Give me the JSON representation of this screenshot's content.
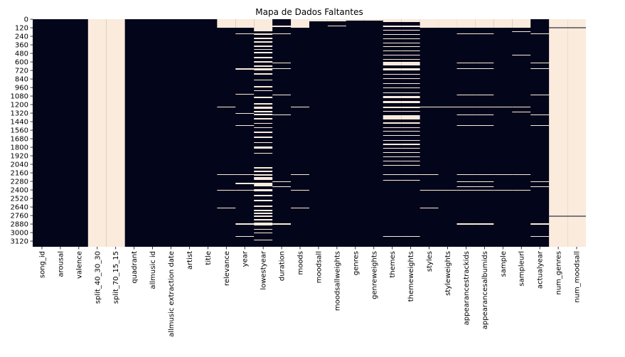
{
  "chart_data": {
    "type": "heatmap",
    "title": "Mapa de Dados Faltantes",
    "xlabel": "",
    "ylabel": "",
    "colors": {
      "present": "#03051a",
      "missing": "#faebdd"
    },
    "n_rows": 3200,
    "y_ticks": [
      0,
      120,
      240,
      360,
      480,
      600,
      720,
      840,
      960,
      1080,
      1200,
      1320,
      1440,
      1560,
      1680,
      1800,
      1920,
      2040,
      2160,
      2280,
      2400,
      2520,
      2640,
      2760,
      2880,
      3000,
      3120
    ],
    "columns": [
      "song_id",
      "arousal",
      "valence",
      "split_40_30_30",
      "split_70_15_15",
      "quadrant",
      "allmusic id",
      "allmusic extraction date",
      "artist",
      "title",
      "relevance",
      "year",
      "lowestyear",
      "duration",
      "moods",
      "moodsall",
      "moodsallweights",
      "genres",
      "genreweights",
      "themes",
      "themeweights",
      "styles",
      "styleweights",
      "appearancestrackids",
      "appearancesalbumids",
      "sample",
      "sampleurl",
      "actualyear",
      "num_genres",
      "num_moodsall"
    ],
    "missing": {
      "song_id": [],
      "arousal": [],
      "valence": [],
      "split_40_30_30": [
        [
          0,
          3200
        ]
      ],
      "split_70_15_15": [
        [
          0,
          3200
        ]
      ],
      "quadrant": [],
      "allmusic id": [],
      "allmusic extraction date": [],
      "artist": [],
      "title": [],
      "relevance": [
        [
          0,
          120
        ],
        [
          1230,
          1240
        ],
        [
          2180,
          2190
        ],
        [
          2400,
          2410
        ],
        [
          2650,
          2660
        ]
      ],
      "year": [
        [
          0,
          120
        ],
        [
          200,
          210
        ],
        [
          690,
          710
        ],
        [
          1050,
          1060
        ],
        [
          1320,
          1330
        ],
        [
          1490,
          1500
        ],
        [
          2180,
          2190
        ],
        [
          2300,
          2320
        ],
        [
          2400,
          2410
        ],
        [
          2870,
          2890
        ],
        [
          3050,
          3060
        ]
      ],
      "lowestyear": [
        [
          0,
          170
        ],
        [
          200,
          220
        ],
        [
          260,
          280
        ],
        [
          310,
          330
        ],
        [
          370,
          390
        ],
        [
          420,
          430
        ],
        [
          460,
          480
        ],
        [
          530,
          550
        ],
        [
          590,
          610
        ],
        [
          650,
          670
        ],
        [
          690,
          720
        ],
        [
          760,
          780
        ],
        [
          850,
          860
        ],
        [
          940,
          960
        ],
        [
          1000,
          1010
        ],
        [
          1090,
          1110
        ],
        [
          1180,
          1200
        ],
        [
          1230,
          1260
        ],
        [
          1290,
          1310
        ],
        [
          1330,
          1350
        ],
        [
          1390,
          1410
        ],
        [
          1460,
          1470
        ],
        [
          1520,
          1530
        ],
        [
          1580,
          1600
        ],
        [
          1650,
          1670
        ],
        [
          1730,
          1740
        ],
        [
          1790,
          1820
        ],
        [
          1880,
          1890
        ],
        [
          2080,
          2100
        ],
        [
          2130,
          2150
        ],
        [
          2180,
          2200
        ],
        [
          2220,
          2260
        ],
        [
          2300,
          2350
        ],
        [
          2390,
          2420
        ],
        [
          2470,
          2490
        ],
        [
          2540,
          2560
        ],
        [
          2620,
          2640
        ],
        [
          2680,
          2700
        ],
        [
          2720,
          2740
        ],
        [
          2760,
          2780
        ],
        [
          2810,
          2830
        ],
        [
          2860,
          2900
        ],
        [
          2950,
          2960
        ],
        [
          3000,
          3010
        ],
        [
          3100,
          3110
        ]
      ],
      "duration": [
        [
          90,
          110
        ],
        [
          200,
          210
        ],
        [
          610,
          620
        ],
        [
          690,
          700
        ],
        [
          1060,
          1070
        ],
        [
          1340,
          1350
        ],
        [
          2280,
          2290
        ],
        [
          2350,
          2360
        ],
        [
          2870,
          2890
        ]
      ],
      "moods": [
        [
          0,
          120
        ],
        [
          1230,
          1240
        ],
        [
          2180,
          2190
        ],
        [
          2400,
          2410
        ],
        [
          2650,
          2660
        ]
      ],
      "moodsall": [
        [
          0,
          30
        ]
      ],
      "moodsallweights": [
        [
          0,
          30
        ],
        [
          90,
          100
        ]
      ],
      "genres": [
        [
          0,
          20
        ]
      ],
      "genreweights": [
        [
          0,
          20
        ]
      ],
      "themes": [
        [
          0,
          40
        ],
        [
          90,
          110
        ],
        [
          150,
          160
        ],
        [
          210,
          220
        ],
        [
          270,
          280
        ],
        [
          330,
          340
        ],
        [
          380,
          390
        ],
        [
          440,
          450
        ],
        [
          500,
          510
        ],
        [
          560,
          570
        ],
        [
          600,
          650
        ],
        [
          690,
          720
        ],
        [
          770,
          780
        ],
        [
          830,
          840
        ],
        [
          900,
          910
        ],
        [
          960,
          970
        ],
        [
          1030,
          1040
        ],
        [
          1080,
          1110
        ],
        [
          1150,
          1180
        ],
        [
          1230,
          1250
        ],
        [
          1290,
          1300
        ],
        [
          1350,
          1410
        ],
        [
          1450,
          1470
        ],
        [
          1520,
          1530
        ],
        [
          1570,
          1580
        ],
        [
          1630,
          1640
        ],
        [
          1700,
          1710
        ],
        [
          1750,
          1770
        ],
        [
          1810,
          1820
        ],
        [
          1870,
          1880
        ],
        [
          1930,
          1940
        ],
        [
          1990,
          2000
        ],
        [
          2050,
          2060
        ],
        [
          2180,
          2190
        ],
        [
          2260,
          2270
        ],
        [
          3050,
          3060
        ]
      ],
      "themeweights": [
        [
          0,
          40
        ],
        [
          90,
          110
        ],
        [
          150,
          160
        ],
        [
          210,
          220
        ],
        [
          270,
          280
        ],
        [
          330,
          340
        ],
        [
          380,
          390
        ],
        [
          440,
          450
        ],
        [
          500,
          510
        ],
        [
          560,
          570
        ],
        [
          600,
          650
        ],
        [
          690,
          720
        ],
        [
          770,
          780
        ],
        [
          830,
          840
        ],
        [
          900,
          910
        ],
        [
          960,
          970
        ],
        [
          1030,
          1040
        ],
        [
          1080,
          1110
        ],
        [
          1150,
          1180
        ],
        [
          1230,
          1250
        ],
        [
          1290,
          1300
        ],
        [
          1350,
          1410
        ],
        [
          1450,
          1470
        ],
        [
          1520,
          1530
        ],
        [
          1570,
          1580
        ],
        [
          1630,
          1640
        ],
        [
          1700,
          1710
        ],
        [
          1750,
          1770
        ],
        [
          1810,
          1820
        ],
        [
          1870,
          1880
        ],
        [
          1930,
          1940
        ],
        [
          1990,
          2000
        ],
        [
          2050,
          2060
        ],
        [
          2180,
          2190
        ],
        [
          2260,
          2270
        ],
        [
          3050,
          3060
        ]
      ],
      "styles": [
        [
          0,
          120
        ],
        [
          1230,
          1240
        ],
        [
          2180,
          2190
        ],
        [
          2400,
          2410
        ],
        [
          2650,
          2660
        ]
      ],
      "styleweights": [
        [
          0,
          120
        ],
        [
          1230,
          1240
        ],
        [
          2400,
          2410
        ]
      ],
      "appearancestrackids": [
        [
          0,
          120
        ],
        [
          200,
          210
        ],
        [
          610,
          620
        ],
        [
          690,
          700
        ],
        [
          1060,
          1070
        ],
        [
          1230,
          1240
        ],
        [
          1340,
          1350
        ],
        [
          1490,
          1500
        ],
        [
          2180,
          2190
        ],
        [
          2280,
          2290
        ],
        [
          2350,
          2360
        ],
        [
          2400,
          2410
        ],
        [
          2870,
          2890
        ]
      ],
      "appearancesalbumids": [
        [
          0,
          120
        ],
        [
          200,
          210
        ],
        [
          610,
          620
        ],
        [
          690,
          700
        ],
        [
          1060,
          1070
        ],
        [
          1230,
          1240
        ],
        [
          1340,
          1350
        ],
        [
          1490,
          1500
        ],
        [
          2180,
          2190
        ],
        [
          2280,
          2290
        ],
        [
          2350,
          2360
        ],
        [
          2400,
          2410
        ],
        [
          2870,
          2890
        ]
      ],
      "sample": [
        [
          0,
          120
        ],
        [
          1230,
          1240
        ],
        [
          2180,
          2190
        ],
        [
          2400,
          2410
        ]
      ],
      "sampleurl": [
        [
          0,
          120
        ],
        [
          170,
          180
        ],
        [
          500,
          510
        ],
        [
          1230,
          1240
        ],
        [
          1300,
          1310
        ],
        [
          2180,
          2190
        ],
        [
          2400,
          2410
        ]
      ],
      "actualyear": [
        [
          200,
          210
        ],
        [
          610,
          620
        ],
        [
          690,
          700
        ],
        [
          1060,
          1070
        ],
        [
          1340,
          1350
        ],
        [
          1490,
          1500
        ],
        [
          2280,
          2290
        ],
        [
          2350,
          2360
        ],
        [
          2870,
          2890
        ],
        [
          3050,
          3060
        ]
      ],
      "num_genres": [
        [
          0,
          3200
        ]
      ],
      "num_moodsall": [
        [
          0,
          3200
        ]
      ]
    },
    "hlines": [
      {
        "from": "num_genres",
        "to": "num_moodsall",
        "row": 120
      },
      {
        "from": "num_genres",
        "to": "num_moodsall",
        "row": 2770
      }
    ]
  }
}
